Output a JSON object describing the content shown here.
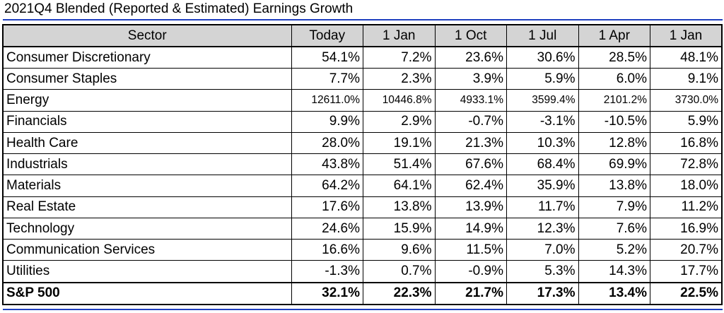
{
  "title": "2021Q4 Blended (Reported & Estimated) Earnings Growth",
  "table": {
    "headers": [
      "Sector",
      "Today",
      "1 Jan",
      "1 Oct",
      "1 Jul",
      "1 Apr",
      "1 Jan"
    ],
    "rows": [
      {
        "sector": "Consumer Discretionary",
        "values": [
          "54.1%",
          "7.2%",
          "23.6%",
          "30.6%",
          "28.5%",
          "48.1%"
        ]
      },
      {
        "sector": "Consumer Staples",
        "values": [
          "7.7%",
          "2.3%",
          "3.9%",
          "5.9%",
          "6.0%",
          "9.1%"
        ]
      },
      {
        "sector": "Energy",
        "values": [
          "12611.0%",
          "10446.8%",
          "4933.1%",
          "3599.4%",
          "2101.2%",
          "3730.0%"
        ]
      },
      {
        "sector": "Financials",
        "values": [
          "9.9%",
          "2.9%",
          "-0.7%",
          "-3.1%",
          "-10.5%",
          "5.9%"
        ]
      },
      {
        "sector": "Health Care",
        "values": [
          "28.0%",
          "19.1%",
          "21.3%",
          "10.3%",
          "12.8%",
          "16.8%"
        ]
      },
      {
        "sector": "Industrials",
        "values": [
          "43.8%",
          "51.4%",
          "67.6%",
          "68.4%",
          "69.9%",
          "72.8%"
        ]
      },
      {
        "sector": "Materials",
        "values": [
          "64.2%",
          "64.1%",
          "62.4%",
          "35.9%",
          "13.8%",
          "18.0%"
        ]
      },
      {
        "sector": "Real Estate",
        "values": [
          "17.6%",
          "13.8%",
          "13.9%",
          "11.7%",
          "7.9%",
          "11.2%"
        ]
      },
      {
        "sector": "Technology",
        "values": [
          "24.6%",
          "15.9%",
          "14.9%",
          "12.3%",
          "7.6%",
          "16.9%"
        ]
      },
      {
        "sector": "Communication Services",
        "values": [
          "16.6%",
          "9.6%",
          "11.5%",
          "7.0%",
          "5.2%",
          "20.7%"
        ]
      },
      {
        "sector": "Utilities",
        "values": [
          "-1.3%",
          "0.7%",
          "-0.9%",
          "5.3%",
          "14.3%",
          "17.7%"
        ]
      },
      {
        "sector": "S&P 500",
        "values": [
          "32.1%",
          "22.3%",
          "21.7%",
          "17.3%",
          "13.4%",
          "22.5%"
        ]
      }
    ]
  },
  "colors": {
    "rule": "#1f3fbf",
    "header_bg": "#d4d4d4",
    "border": "#000000"
  }
}
